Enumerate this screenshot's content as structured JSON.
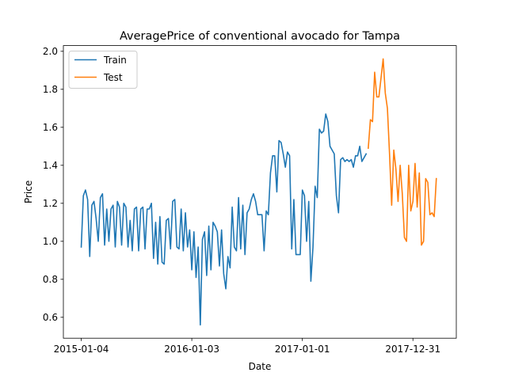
{
  "chart_data": {
    "type": "line",
    "title": "AveragePrice of conventional avocado for Tampa",
    "xlabel": "Date",
    "ylabel": "Price",
    "x_ticks": [
      {
        "label": "2015-01-04",
        "week": 0
      },
      {
        "label": "2016-01-03",
        "week": 52
      },
      {
        "label": "2017-01-01",
        "week": 104
      },
      {
        "label": "2017-12-31",
        "week": 156
      }
    ],
    "y_ticks": [
      "0.6",
      "0.8",
      "1.0",
      "1.2",
      "1.4",
      "1.6",
      "1.8",
      "2.0"
    ],
    "ylim": [
      0.49,
      2.03
    ],
    "xlim_weeks": [
      -8.4,
      176.4
    ],
    "grid": false,
    "legend_position": "top-left",
    "series": [
      {
        "name": "Train",
        "color": "#1f77b4",
        "start_week": 0,
        "values": [
          0.97,
          1.24,
          1.27,
          1.22,
          0.92,
          1.19,
          1.21,
          1.12,
          1.0,
          1.23,
          1.25,
          0.98,
          1.17,
          1.0,
          1.17,
          1.19,
          0.97,
          1.21,
          1.18,
          0.98,
          1.2,
          1.18,
          0.97,
          1.11,
          0.95,
          1.17,
          1.18,
          0.95,
          1.17,
          1.18,
          0.96,
          1.17,
          1.17,
          1.2,
          0.91,
          1.1,
          0.88,
          1.13,
          0.89,
          0.88,
          1.11,
          1.12,
          0.96,
          1.21,
          1.22,
          0.97,
          0.96,
          1.17,
          0.95,
          1.15,
          0.97,
          1.06,
          0.85,
          1.05,
          0.81,
          0.97,
          0.56,
          1.01,
          1.05,
          0.82,
          1.08,
          0.85,
          1.1,
          1.08,
          1.05,
          0.87,
          1.06,
          0.83,
          0.75,
          0.92,
          0.86,
          1.18,
          0.97,
          0.95,
          1.23,
          0.96,
          1.19,
          0.93,
          1.15,
          1.17,
          1.22,
          1.25,
          1.21,
          1.14,
          1.14,
          1.14,
          0.95,
          1.16,
          1.14,
          1.36,
          1.45,
          1.45,
          1.26,
          1.53,
          1.52,
          1.46,
          1.39,
          1.47,
          1.45,
          0.96,
          1.22,
          0.93,
          0.93,
          0.93,
          1.27,
          1.24,
          1.0,
          1.21,
          0.79,
          0.97,
          1.29,
          1.23,
          1.59,
          1.57,
          1.58,
          1.67,
          1.63,
          1.5,
          1.48,
          1.46,
          1.24,
          1.15,
          1.43,
          1.44,
          1.42,
          1.43,
          1.42,
          1.43,
          1.39,
          1.45,
          1.45,
          1.5,
          1.42,
          1.44,
          1.46
        ]
      },
      {
        "name": "Test",
        "color": "#ff7f0e",
        "start_week": 135,
        "values": [
          1.49,
          1.64,
          1.63,
          1.89,
          1.76,
          1.76,
          1.86,
          1.96,
          1.78,
          1.7,
          1.46,
          1.19,
          1.48,
          1.38,
          1.21,
          1.4,
          1.25,
          1.02,
          1.0,
          1.4,
          1.16,
          1.21,
          1.41,
          1.18,
          1.36,
          0.98,
          1.0,
          1.33,
          1.31,
          1.14,
          1.15,
          1.13,
          1.33
        ]
      }
    ]
  }
}
